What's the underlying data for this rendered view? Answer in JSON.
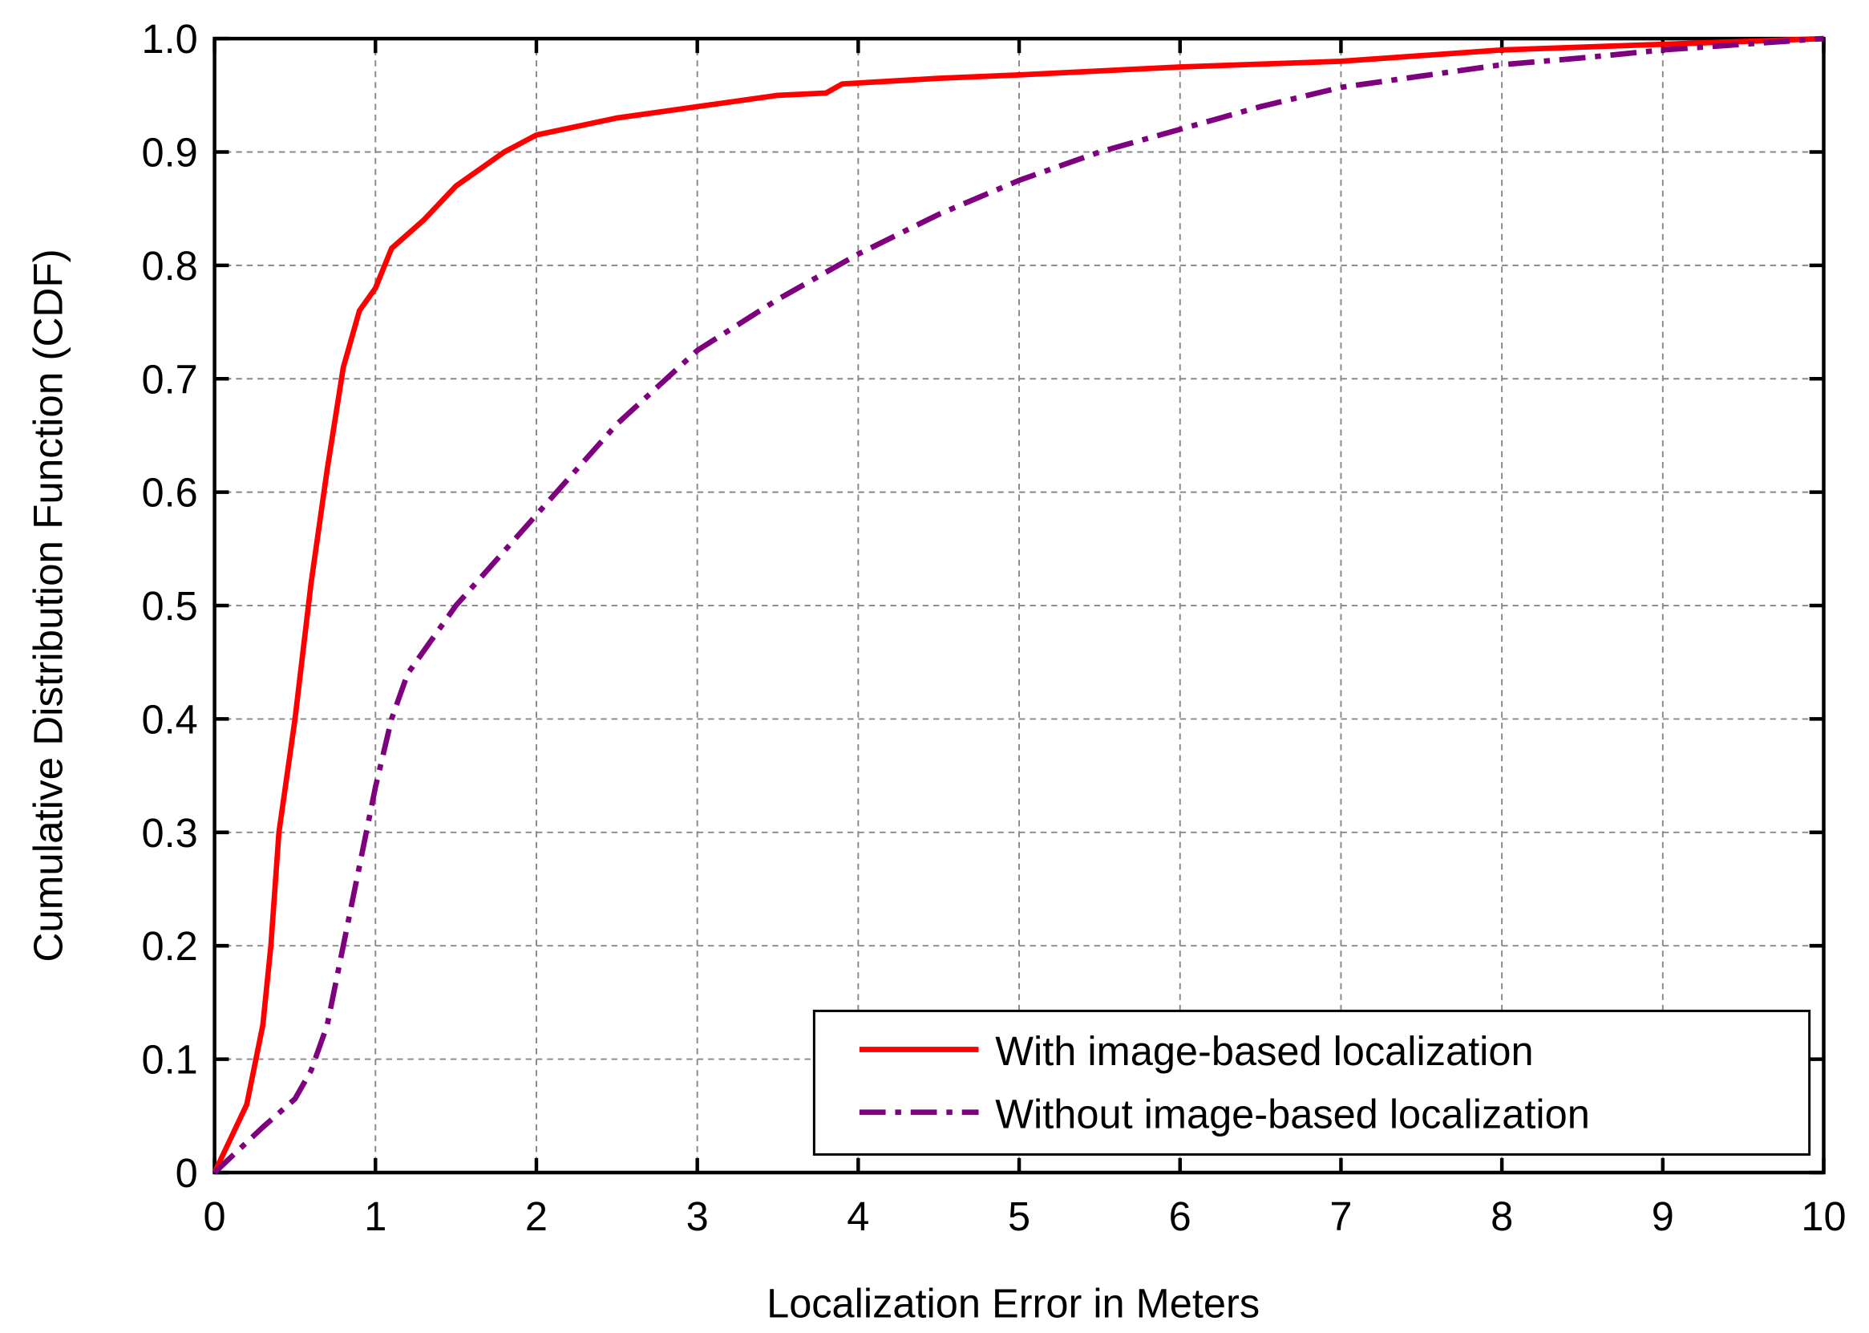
{
  "chart_data": {
    "type": "line",
    "xlabel": "Localization Error in Meters",
    "ylabel": "Cumulative Distribution Function (CDF)",
    "xlim": [
      0,
      10
    ],
    "xticks": [
      0,
      1,
      2,
      3,
      4,
      5,
      6,
      7,
      8,
      9,
      10
    ],
    "ylim": [
      0,
      1
    ],
    "yticks": [
      0,
      0.1,
      0.2,
      0.3,
      0.4,
      0.5,
      0.6,
      0.7,
      0.8,
      0.9,
      {
        "value": 1,
        "label": "1.0"
      }
    ],
    "grid": true,
    "legend": "lower right",
    "series": [
      {
        "name": "With image-based localization",
        "color": "#ff0000",
        "dash": "solid",
        "x": [
          0,
          0.1,
          0.2,
          0.3,
          0.35,
          0.4,
          0.5,
          0.6,
          0.7,
          0.8,
          0.9,
          1.0,
          1.1,
          1.3,
          1.5,
          1.8,
          2,
          2.5,
          3,
          3.5,
          3.8,
          3.9,
          4.5,
          5,
          6,
          7,
          8,
          9,
          10
        ],
        "values": [
          0,
          0.03,
          0.06,
          0.13,
          0.2,
          0.3,
          0.4,
          0.52,
          0.62,
          0.71,
          0.76,
          0.78,
          0.815,
          0.84,
          0.87,
          0.9,
          0.915,
          0.93,
          0.94,
          0.95,
          0.952,
          0.96,
          0.965,
          0.968,
          0.975,
          0.98,
          0.99,
          0.995,
          1
        ]
      },
      {
        "name": "Without image-based localization",
        "color": "#7f007f",
        "dash": "dashdot",
        "x": [
          0,
          0.3,
          0.5,
          0.6,
          0.7,
          0.8,
          0.9,
          1,
          1.1,
          1.2,
          1.5,
          2,
          2.5,
          3,
          3.5,
          4,
          4.5,
          5,
          5.5,
          6,
          6.5,
          7,
          7.5,
          8,
          8.5,
          9,
          9.5,
          10
        ],
        "values": [
          0,
          0.04,
          0.065,
          0.09,
          0.13,
          0.2,
          0.27,
          0.34,
          0.4,
          0.44,
          0.5,
          0.58,
          0.66,
          0.725,
          0.77,
          0.81,
          0.845,
          0.875,
          0.9,
          0.92,
          0.94,
          0.957,
          0.967,
          0.977,
          0.983,
          0.99,
          0.995,
          1
        ]
      }
    ]
  }
}
